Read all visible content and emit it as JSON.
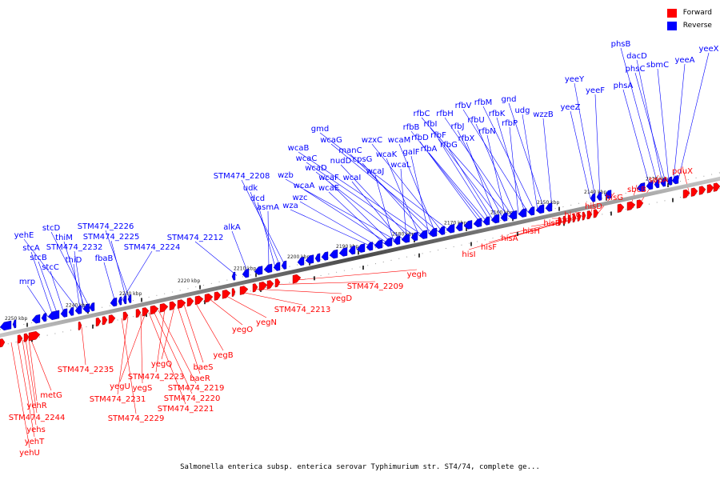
{
  "legend": {
    "forward": {
      "label": "Forward",
      "color": "#ff0000"
    },
    "reverse": {
      "label": "Reverse",
      "color": "#0000ff"
    }
  },
  "caption": "Salmonella enterica subsp. enterica serovar Typhimurium str. ST4/74, complete ge...",
  "ticks": [
    "2130 kbp",
    "2140 kbp",
    "2150 kbp",
    "2160 kbp",
    "2170 kbp",
    "2180 kbp",
    "2190 kbp",
    "2200 kbp",
    "2210 kbp",
    "2220 kbp",
    "2230 kbp",
    "2240 kbp",
    "2250 kbp"
  ],
  "reverse_genes": [
    "phsB",
    "dacD",
    "phsC",
    "sbmC",
    "yeeA",
    "yeeX",
    "yeeY",
    "yeeF",
    "phsA",
    "yeeZ",
    "gnd",
    "rfbM",
    "udg",
    "rfbV",
    "rfbK",
    "wzzB",
    "rfbC",
    "rfbH",
    "rfbU",
    "rfbP",
    "rfbI",
    "rfbJ",
    "rfbN",
    "rfbB",
    "rfbF",
    "rfbX",
    "rfbD",
    "rfbA",
    "rfbG",
    "gmd",
    "wcaG",
    "wzxC",
    "wcaM",
    "manC",
    "galF",
    "wcaB",
    "cpsG",
    "wcaK",
    "wcaC",
    "nudD",
    "wcaL",
    "wcaD",
    "wcaI",
    "wzb",
    "wcaJ",
    "wcaF",
    "wcaA",
    "wcaE",
    "wzc",
    "wza",
    "STM474_2208",
    "udk",
    "dcd",
    "asmA",
    "alkA",
    "STM474_2212",
    "STM474_2226",
    "stcD",
    "yehE",
    "thiM",
    "STM474_2225",
    "STM474_2232",
    "stcA",
    "STM474_2224",
    "stcB",
    "fbaB",
    "thiD",
    "stcC",
    "mrp"
  ],
  "forward_genes": [
    "pduX",
    "sopA",
    "sbcB",
    "hisG",
    "hisD",
    "hisC",
    "hisB",
    "hisH",
    "hisA",
    "hisF",
    "hisI",
    "yegh",
    "STM474_2209",
    "yegD",
    "STM474_2213",
    "yegN",
    "yegO",
    "yegB",
    "baeS",
    "yegQ",
    "baeR",
    "STM474_2223",
    "STM474_2219",
    "STM474_2235",
    "yegU",
    "STM474_2220",
    "yegS",
    "metG",
    "STM474_2231",
    "STM474_2221",
    "yehR",
    "STM474_2244",
    "STM474_2229",
    "yehs",
    "yehT",
    "yehU"
  ]
}
